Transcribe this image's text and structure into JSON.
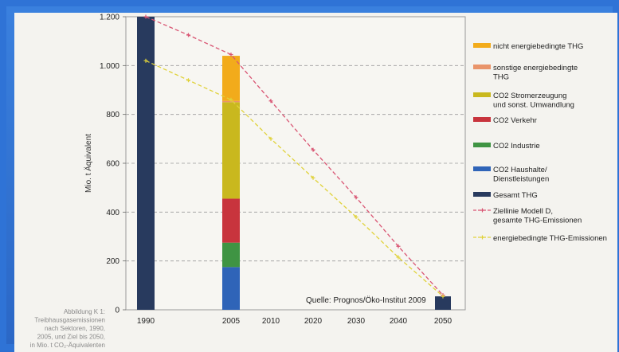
{
  "chart_data": {
    "type": "bar",
    "ylabel": "Mio. t Äquivalent",
    "ylim": [
      0,
      1200
    ],
    "yticks": [
      0,
      200,
      400,
      600,
      800,
      1000,
      1200
    ],
    "ytick_labels": [
      "0",
      "200",
      "400",
      "600",
      "800",
      "1.000",
      "1.200"
    ],
    "categories": [
      "1990",
      "2005",
      "2010",
      "2020",
      "2030",
      "2040",
      "2050"
    ],
    "grid": true,
    "source": "Quelle: Prognos/Öko-Institut  2009",
    "stacked_bars": [
      {
        "category": "1990",
        "segments": [
          {
            "series": "Gesamt THG",
            "value": 1200
          }
        ]
      },
      {
        "category": "2005",
        "segments": [
          {
            "series": "CO2 Haushalte/ Dienstleistungen",
            "value": 175
          },
          {
            "series": "CO2 Industrie",
            "value": 100
          },
          {
            "series": "CO2 Verkehr",
            "value": 180
          },
          {
            "series": "CO2 Stromerzeugung und sonst. Umwandlung",
            "value": 395
          },
          {
            "series": "sonstige energiebedingte THG",
            "value": 5
          },
          {
            "series": "nicht energiebedingte THG",
            "value": 185
          }
        ]
      },
      {
        "category": "2050",
        "segments": [
          {
            "series": "Gesamt THG",
            "value": 55
          }
        ]
      }
    ],
    "lines": [
      {
        "series": "Ziellinie Modell D, gesamte THG-Emissionen",
        "x": [
          "1990",
          "2005",
          "2010",
          "2020",
          "2030",
          "2040",
          "2050"
        ],
        "values": [
          1200,
          1045,
          855,
          655,
          460,
          260,
          60
        ]
      },
      {
        "series": "energiebedingte THG-Emissionen",
        "x": [
          "1990",
          "2005",
          "2010",
          "2020",
          "2030",
          "2040",
          "2050"
        ],
        "values": [
          1020,
          860,
          700,
          540,
          380,
          215,
          55
        ]
      }
    ],
    "line_extra_points": [
      {
        "series": "Ziellinie Modell D, gesamte THG-Emissionen",
        "x_between": [
          "1990",
          "2005"
        ],
        "value": 1125
      },
      {
        "series": "energiebedingte THG-Emissionen",
        "x_between": [
          "1990",
          "2005"
        ],
        "value": 940
      }
    ],
    "legend": [
      {
        "label_lines": [
          "nicht energiebedingte THG"
        ],
        "color": "#f2ab1b",
        "kind": "box"
      },
      {
        "label_lines": [
          "sonstige energiebedingte",
          "THG"
        ],
        "color": "#e9946a",
        "kind": "box"
      },
      {
        "label_lines": [
          "CO2 Stromerzeugung",
          "und sonst. Umwandlung"
        ],
        "color": "#c9b81e",
        "kind": "box"
      },
      {
        "label_lines": [
          "CO2 Verkehr"
        ],
        "color": "#c8343d",
        "kind": "box"
      },
      {
        "label_lines": [
          "CO2 Industrie"
        ],
        "color": "#3f9443",
        "kind": "box"
      },
      {
        "label_lines": [
          "CO2 Haushalte/",
          "Dienstleistungen"
        ],
        "color": "#2f64b8",
        "kind": "box"
      },
      {
        "label_lines": [
          "Gesamt THG"
        ],
        "color": "#283a5e",
        "kind": "box"
      },
      {
        "label_lines": [
          "Ziellinie Modell D,",
          "gesamte THG-Emissionen"
        ],
        "color": "#d95573",
        "kind": "dashed-line"
      },
      {
        "label_lines": [
          "energiebedingte THG-Emissionen"
        ],
        "color": "#e0d23a",
        "kind": "dashed-line"
      }
    ],
    "colors": {
      "Gesamt THG": "#283a5e",
      "CO2 Haushalte/ Dienstleistungen": "#2f64b8",
      "CO2 Industrie": "#3f9443",
      "CO2 Verkehr": "#c8343d",
      "CO2 Stromerzeugung und sonst. Umwandlung": "#c9b81e",
      "sonstige energiebedingte THG": "#e9946a",
      "nicht energiebedingte THG": "#f2ab1b",
      "Ziellinie Modell D, gesamte THG-Emissionen": "#d95573",
      "energiebedingte THG-Emissionen": "#e0d23a"
    }
  },
  "caption": {
    "lines": [
      "Abbildung K 1:",
      "Treibhausgasemissionen",
      "nach Sektoren, 1990,",
      "2005, und Ziel bis 2050,",
      "in Mio. t CO₂-Äquivalenten"
    ]
  }
}
